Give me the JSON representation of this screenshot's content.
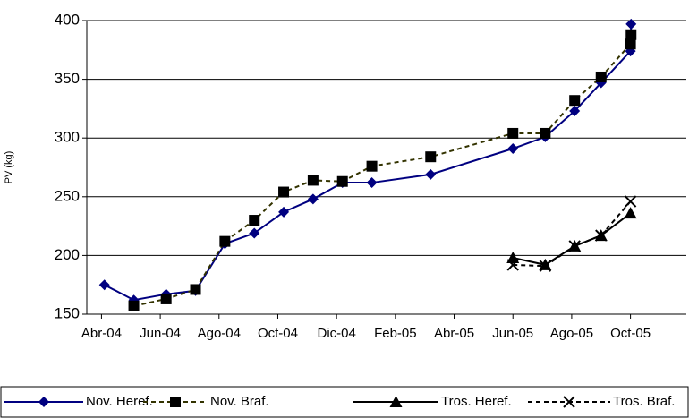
{
  "chart_data": {
    "type": "line",
    "y_label": "PV (kg)",
    "xlim": [
      -0.5,
      19.9
    ],
    "ylim": [
      150,
      400
    ],
    "xticks": [
      {
        "value": 0,
        "label": "Abr-04"
      },
      {
        "value": 2,
        "label": "Jun-04"
      },
      {
        "value": 4,
        "label": "Ago-04"
      },
      {
        "value": 6,
        "label": "Oct-04"
      },
      {
        "value": 8,
        "label": "Dic-04"
      },
      {
        "value": 10,
        "label": "Feb-05"
      },
      {
        "value": 12,
        "label": "Abr-05"
      },
      {
        "value": 14,
        "label": "Jun-05"
      },
      {
        "value": 16,
        "label": "Ago-05"
      },
      {
        "value": 18,
        "label": "Oct-05"
      }
    ],
    "yticks": [
      150,
      200,
      250,
      300,
      350,
      400
    ],
    "grid": true,
    "legend": "bottom",
    "series": [
      {
        "name": "Nov. Heref.",
        "color": "#000080",
        "marker": "diamond",
        "marker_color": "#000080",
        "dash": false,
        "x": [
          0.1,
          1.1,
          2.2,
          3.2,
          4.2,
          5.2,
          6.2,
          7.2,
          8.2,
          9.2,
          11.2,
          14.0,
          15.1,
          16.1,
          17.0,
          18.0,
          18.02
        ],
        "values": [
          175,
          162,
          167,
          170,
          210,
          219,
          237,
          248,
          262,
          262,
          269,
          291,
          301,
          323,
          347,
          374,
          397
        ]
      },
      {
        "name": "Nov. Braf.",
        "color": "#333300",
        "marker": "square",
        "marker_color": "#000000",
        "dash": true,
        "x": [
          1.1,
          2.2,
          3.2,
          4.2,
          5.2,
          6.2,
          7.2,
          8.2,
          9.2,
          11.2,
          14.0,
          15.1,
          16.1,
          17.0,
          18.0,
          18.02
        ],
        "values": [
          157,
          163,
          171,
          212,
          230,
          254,
          264,
          263,
          276,
          284,
          304,
          304,
          332,
          352,
          380,
          388
        ]
      },
      {
        "name": "Tros. Heref.",
        "color": "#000000",
        "marker": "triangle",
        "marker_color": "#000000",
        "dash": false,
        "x": [
          14.0,
          15.1,
          16.1,
          17.0,
          18.0
        ],
        "values": [
          198,
          192,
          208,
          217,
          236
        ]
      },
      {
        "name": "Tros. Braf.",
        "color": "#000000",
        "marker": "x",
        "marker_color": "#000000",
        "dash": true,
        "x": [
          14.0,
          15.1,
          16.1,
          17.0,
          18.0
        ],
        "values": [
          192,
          191,
          208,
          217,
          246
        ]
      }
    ]
  }
}
